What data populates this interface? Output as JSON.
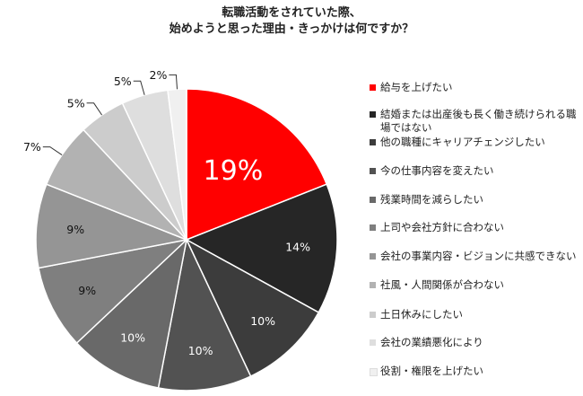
{
  "title": {
    "line1": "転職活動をされていた際、",
    "line2": "始めようと思った理由・きっかけは何ですか？"
  },
  "chart_data": {
    "type": "pie",
    "title": "転職活動をされていた際、始めようと思った理由・きっかけは何ですか？",
    "legend_position": "right",
    "start_angle_deg": 0,
    "direction": "clockwise",
    "slices": [
      {
        "name": "給与を上げたい",
        "value": 19,
        "label": "19%",
        "color": "#ff0000"
      },
      {
        "name": "結婚または出産後も長く働き続けられる職場ではない",
        "value": 14,
        "label": "14%",
        "color": "#262626"
      },
      {
        "name": "他の職種にキャリアチェンジしたい",
        "value": 10,
        "label": "10%",
        "color": "#3c3c3c"
      },
      {
        "name": "今の仕事内容を変えたい",
        "value": 10,
        "label": "10%",
        "color": "#525252"
      },
      {
        "name": "残業時間を減らしたい",
        "value": 10,
        "label": "10%",
        "color": "#696969"
      },
      {
        "name": "上司や会社方針に合わない",
        "value": 9,
        "label": "9%",
        "color": "#7f7f7f"
      },
      {
        "name": "会社の事業内容・ビジョンに共感できない",
        "value": 9,
        "label": "9%",
        "color": "#959595"
      },
      {
        "name": "社風・人間関係が合わない",
        "value": 7,
        "label": "7%",
        "color": "#b2b2b2"
      },
      {
        "name": "土日休みにしたい",
        "value": 5,
        "label": "5%",
        "color": "#cccccc"
      },
      {
        "name": "会社の業績悪化により",
        "value": 5,
        "label": "5%",
        "color": "#dedede"
      },
      {
        "name": "役割・権限を上げたい",
        "value": 2,
        "label": "2%",
        "color": "#f0f0f0"
      }
    ]
  }
}
